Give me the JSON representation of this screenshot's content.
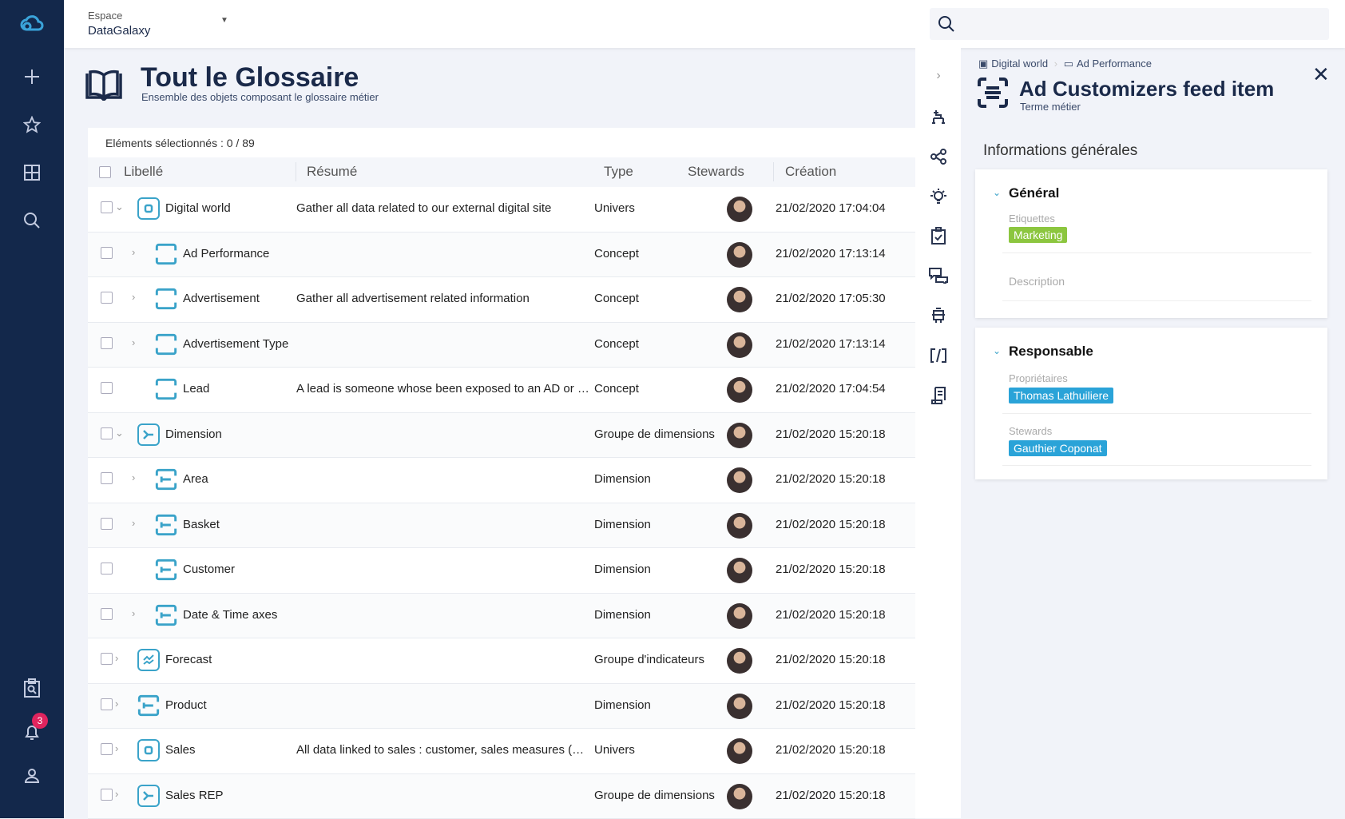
{
  "topbar": {
    "space_label": "Espace",
    "space_value": "DataGalaxy",
    "search_placeholder": ""
  },
  "nav": {
    "notification_count": "3"
  },
  "page": {
    "title": "Tout le Glossaire",
    "subtitle": "Ensemble des objets composant le glossaire métier"
  },
  "table": {
    "selection": "Eléments sélectionnés : 0 / 89",
    "columns": [
      "Libellé",
      "Résumé",
      "Type",
      "Stewards",
      "Création"
    ],
    "rows": [
      {
        "label": "Digital world",
        "summary": "Gather all data related to our external digital site",
        "type": "Univers",
        "created": "21/02/2020 17:04:04",
        "level": 0,
        "expand": "down",
        "icon": "universe"
      },
      {
        "label": "Ad Performance",
        "summary": "",
        "type": "Concept",
        "created": "21/02/2020 17:13:14",
        "level": 1,
        "expand": "right",
        "icon": "concept"
      },
      {
        "label": "Advertisement",
        "summary": "Gather all advertisement related information",
        "type": "Concept",
        "created": "21/02/2020 17:05:30",
        "level": 1,
        "expand": "right",
        "icon": "concept"
      },
      {
        "label": "Advertisement Type",
        "summary": "",
        "type": "Concept",
        "created": "21/02/2020 17:13:14",
        "level": 1,
        "expand": "right",
        "icon": "concept"
      },
      {
        "label": "Lead",
        "summary": "A lead is someone whose been exposed to an AD or ha...",
        "type": "Concept",
        "created": "21/02/2020 17:04:54",
        "level": 1,
        "expand": "",
        "icon": "concept"
      },
      {
        "label": "Dimension",
        "summary": "",
        "type": "Groupe de dimensions",
        "created": "21/02/2020 15:20:18",
        "level": 0,
        "expand": "down",
        "icon": "dimension-group"
      },
      {
        "label": "Area",
        "summary": "",
        "type": "Dimension",
        "created": "21/02/2020 15:20:18",
        "level": 1,
        "expand": "right",
        "icon": "dimension"
      },
      {
        "label": "Basket",
        "summary": "",
        "type": "Dimension",
        "created": "21/02/2020 15:20:18",
        "level": 1,
        "expand": "right",
        "icon": "dimension"
      },
      {
        "label": "Customer",
        "summary": "",
        "type": "Dimension",
        "created": "21/02/2020 15:20:18",
        "level": 1,
        "expand": "",
        "icon": "dimension"
      },
      {
        "label": "Date & Time axes",
        "summary": "",
        "type": "Dimension",
        "created": "21/02/2020 15:20:18",
        "level": 1,
        "expand": "right",
        "icon": "dimension"
      },
      {
        "label": "Forecast",
        "summary": "",
        "type": "Groupe d'indicateurs",
        "created": "21/02/2020 15:20:18",
        "level": 0,
        "expand": "right",
        "icon": "indicator-group"
      },
      {
        "label": "Product",
        "summary": "",
        "type": "Dimension",
        "created": "21/02/2020 15:20:18",
        "level": 0,
        "expand": "right",
        "icon": "dimension"
      },
      {
        "label": "Sales",
        "summary": "All data linked to sales : customer, sales measures (KPI...",
        "type": "Univers",
        "created": "21/02/2020 15:20:18",
        "level": 0,
        "expand": "right",
        "icon": "universe"
      },
      {
        "label": "Sales REP",
        "summary": "",
        "type": "Groupe de dimensions",
        "created": "21/02/2020 15:20:18",
        "level": 0,
        "expand": "right",
        "icon": "dimension-group"
      }
    ]
  },
  "detail": {
    "breadcrumb": [
      "Digital world",
      "Ad Performance"
    ],
    "title": "Ad Customizers feed item",
    "subtitle": "Terme métier",
    "section_title": "Informations générales",
    "general": {
      "heading": "Général",
      "tags_label": "Etiquettes",
      "tag": "Marketing",
      "tag_color": "#8cc63f",
      "description_label": "Description"
    },
    "responsible": {
      "heading": "Responsable",
      "owners_label": "Propriétaires",
      "owner": "Thomas Lathuiliere",
      "stewards_label": "Stewards",
      "steward": "Gauthier Coponat",
      "chip_color": "#2aa3d8"
    }
  },
  "colors": {
    "nav": "#13284b",
    "accent": "#3aa3c9",
    "badge": "#e0245e"
  }
}
